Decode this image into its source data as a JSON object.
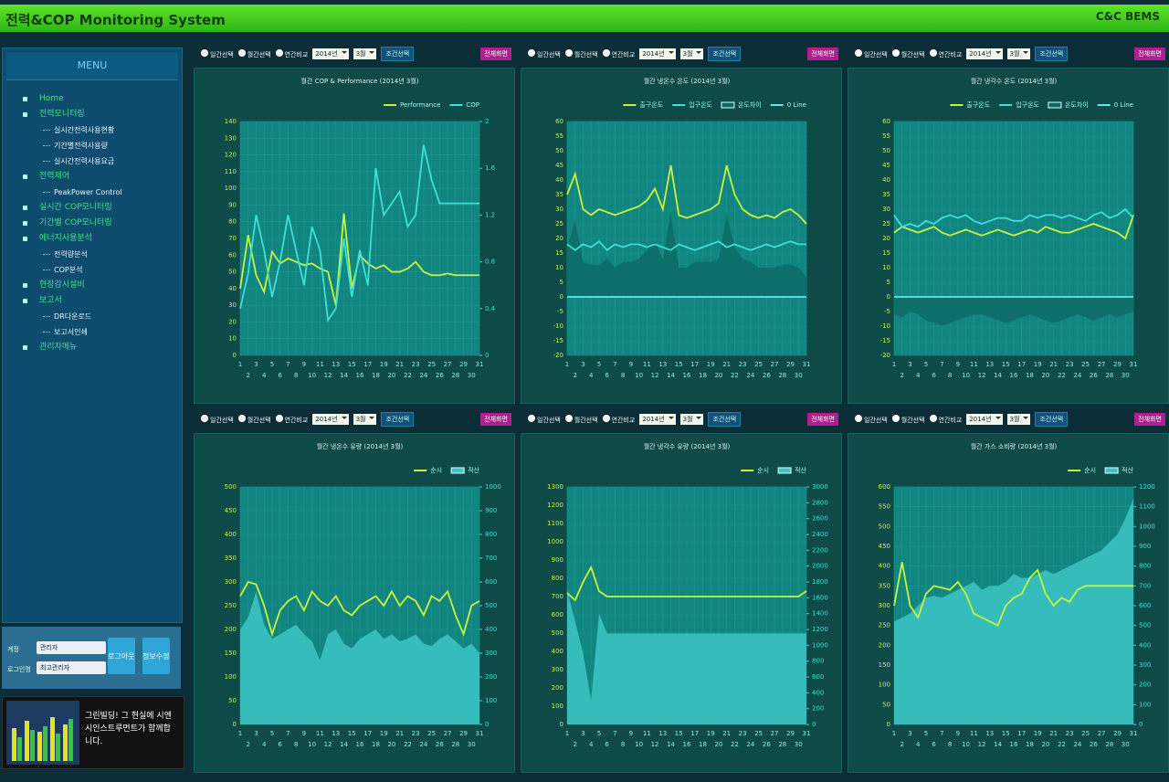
{
  "header": {
    "title": "전력&COP Monitoring System",
    "brand": "C&C BEMS"
  },
  "menu": {
    "title": "MENU",
    "items": [
      {
        "label": "Home"
      },
      {
        "label": "전력모니터링",
        "sub": [
          "실시간전력사용현황",
          "기간별전력사용량",
          "실시간전력사용요금"
        ]
      },
      {
        "label": "전력제어",
        "sub": [
          "PeakPower Control"
        ]
      },
      {
        "label": "실시간 COP모니터링"
      },
      {
        "label": "기간별 COP모니터링"
      },
      {
        "label": "에너지사용분석",
        "sub": [
          "전력량분석",
          "COP분석"
        ]
      },
      {
        "label": "현장감시설비"
      },
      {
        "label": "보고서",
        "sub": [
          "DR다운로드",
          "보고서인쇄"
        ]
      },
      {
        "label": "관리자메뉴"
      }
    ]
  },
  "login": {
    "fields": [
      {
        "label": "계정",
        "value": "관리자"
      },
      {
        "label": "로그인명",
        "value": "최고관리자"
      }
    ],
    "buttons": [
      "로그아웃",
      "정보수정"
    ]
  },
  "banner": {
    "text": "그린빌딩! 그 현실에 시엔시인스트루먼트가 함께합니다."
  },
  "controls": {
    "options": [
      "일간선택",
      "월간선택",
      "연간비교"
    ],
    "year": "2014년",
    "month": "3월",
    "search": "조건선택",
    "fullscreen": "전체화면"
  },
  "chart_data": [
    {
      "type": "line",
      "title": "월간 COP & Performance (2014년 3월)",
      "grid": true,
      "x": [
        1,
        2,
        3,
        4,
        5,
        6,
        7,
        8,
        9,
        10,
        11,
        12,
        13,
        14,
        15,
        16,
        17,
        18,
        19,
        20,
        21,
        22,
        23,
        24,
        25,
        26,
        27,
        28,
        29,
        30,
        31
      ],
      "xlim": [
        1,
        31
      ],
      "xticks": [
        1,
        2,
        3,
        4,
        5,
        6,
        7,
        8,
        9,
        10,
        11,
        12,
        13,
        14,
        15,
        16,
        17,
        18,
        19,
        20,
        21,
        22,
        23,
        24,
        25,
        26,
        27,
        28,
        29,
        30,
        31
      ],
      "ylim": [
        0,
        140
      ],
      "yticks": [
        0,
        10,
        20,
        30,
        40,
        50,
        60,
        70,
        80,
        90,
        100,
        110,
        120,
        130,
        140
      ],
      "y2lim": [
        0,
        2
      ],
      "y2ticks": [
        0,
        0.4,
        0.8,
        1.2,
        1.6,
        2
      ],
      "series": [
        {
          "name": "Performance",
          "color": "#c8f53c",
          "values": [
            40,
            72,
            48,
            38,
            62,
            55,
            58,
            56,
            54,
            55,
            52,
            50,
            30,
            85,
            40,
            60,
            55,
            52,
            54,
            50,
            50,
            52,
            56,
            50,
            48,
            48,
            49,
            48,
            48,
            48,
            48
          ]
        },
        {
          "name": "COP",
          "color": "#3de0d8",
          "axis": "y2",
          "values": [
            0.4,
            0.7,
            1.2,
            0.9,
            0.5,
            0.8,
            1.2,
            0.9,
            0.6,
            1.1,
            0.9,
            0.3,
            0.4,
            1.0,
            0.5,
            0.9,
            0.6,
            1.6,
            1.2,
            1.3,
            1.4,
            1.1,
            1.2,
            1.8,
            1.5,
            1.3,
            1.3,
            1.3,
            1.3,
            1.3,
            1.3
          ]
        }
      ]
    },
    {
      "type": "line",
      "title": "월간 냉온수 온도 (2014년 3월)",
      "grid": true,
      "x": [
        1,
        2,
        3,
        4,
        5,
        6,
        7,
        8,
        9,
        10,
        11,
        12,
        13,
        14,
        15,
        16,
        17,
        18,
        19,
        20,
        21,
        22,
        23,
        24,
        25,
        26,
        27,
        28,
        29,
        30,
        31
      ],
      "xlim": [
        1,
        31
      ],
      "xticks": [
        1,
        2,
        3,
        4,
        5,
        6,
        7,
        8,
        9,
        10,
        11,
        12,
        13,
        14,
        15,
        16,
        17,
        18,
        19,
        20,
        21,
        22,
        23,
        24,
        25,
        26,
        27,
        28,
        29,
        30,
        31
      ],
      "ylim": [
        -20,
        60
      ],
      "yticks": [
        -20,
        -15,
        -10,
        -5,
        0,
        5,
        10,
        15,
        20,
        25,
        30,
        35,
        40,
        45,
        50,
        55,
        60
      ],
      "series": [
        {
          "name": "출구온도",
          "color": "#c8f53c",
          "values": [
            35,
            42,
            30,
            28,
            30,
            29,
            28,
            29,
            30,
            31,
            33,
            37,
            30,
            45,
            28,
            27,
            28,
            29,
            30,
            32,
            45,
            35,
            30,
            28,
            27,
            28,
            27,
            29,
            30,
            28,
            25
          ]
        },
        {
          "name": "입구온도",
          "color": "#3de0d8",
          "values": [
            18,
            16,
            18,
            17,
            19,
            16,
            18,
            17,
            18,
            18,
            17,
            18,
            17,
            16,
            18,
            17,
            16,
            17,
            18,
            19,
            17,
            18,
            17,
            16,
            17,
            18,
            17,
            18,
            19,
            18,
            18
          ]
        },
        {
          "name": "온도차이",
          "color": "#0d6a66",
          "style": "area",
          "values": [
            17,
            26,
            12,
            11,
            11,
            13,
            10,
            12,
            12,
            13,
            16,
            19,
            13,
            29,
            10,
            10,
            12,
            12,
            12,
            13,
            28,
            17,
            13,
            12,
            10,
            10,
            10,
            11,
            11,
            10,
            7
          ]
        },
        {
          "name": "0 Line",
          "color": "#5ee8ea",
          "values": [
            0,
            0,
            0,
            0,
            0,
            0,
            0,
            0,
            0,
            0,
            0,
            0,
            0,
            0,
            0,
            0,
            0,
            0,
            0,
            0,
            0,
            0,
            0,
            0,
            0,
            0,
            0,
            0,
            0,
            0,
            0
          ]
        }
      ]
    },
    {
      "type": "line",
      "title": "월간 냉각수 온도 (2014년 3월)",
      "grid": true,
      "x": [
        1,
        2,
        3,
        4,
        5,
        6,
        7,
        8,
        9,
        10,
        11,
        12,
        13,
        14,
        15,
        16,
        17,
        18,
        19,
        20,
        21,
        22,
        23,
        24,
        25,
        26,
        27,
        28,
        29,
        30,
        31
      ],
      "xlim": [
        1,
        31
      ],
      "xticks": [
        1,
        2,
        3,
        4,
        5,
        6,
        7,
        8,
        9,
        10,
        11,
        12,
        13,
        14,
        15,
        16,
        17,
        18,
        19,
        20,
        21,
        22,
        23,
        24,
        25,
        26,
        27,
        28,
        29,
        30,
        31
      ],
      "ylim": [
        -20,
        60
      ],
      "yticks": [
        -20,
        -15,
        -10,
        -5,
        0,
        5,
        10,
        15,
        20,
        25,
        30,
        35,
        40,
        45,
        50,
        55,
        60
      ],
      "series": [
        {
          "name": "출구온도",
          "color": "#c8f53c",
          "values": [
            22,
            24,
            23,
            22,
            23,
            24,
            22,
            21,
            22,
            23,
            22,
            21,
            22,
            23,
            22,
            21,
            22,
            23,
            22,
            24,
            23,
            22,
            22,
            23,
            24,
            25,
            24,
            23,
            22,
            20,
            28
          ]
        },
        {
          "name": "입구온도",
          "color": "#3de0d8",
          "values": [
            28,
            24,
            25,
            24,
            26,
            25,
            27,
            28,
            27,
            28,
            26,
            25,
            26,
            27,
            27,
            26,
            26,
            28,
            27,
            28,
            28,
            27,
            28,
            27,
            26,
            28,
            29,
            27,
            28,
            30,
            27
          ]
        },
        {
          "name": "온도차이",
          "color": "#0d6a66",
          "style": "area",
          "values": [
            -6,
            -7,
            -5,
            -6,
            -8,
            -9,
            -10,
            -9,
            -8,
            -7,
            -6,
            -6,
            -7,
            -8,
            -9,
            -8,
            -7,
            -6,
            -7,
            -8,
            -9,
            -8,
            -7,
            -6,
            -7,
            -8,
            -7,
            -6,
            -7,
            -6,
            -5
          ]
        },
        {
          "name": "0 Line",
          "color": "#5ee8ea",
          "values": [
            0,
            0,
            0,
            0,
            0,
            0,
            0,
            0,
            0,
            0,
            0,
            0,
            0,
            0,
            0,
            0,
            0,
            0,
            0,
            0,
            0,
            0,
            0,
            0,
            0,
            0,
            0,
            0,
            0,
            0,
            0
          ]
        }
      ]
    },
    {
      "type": "line",
      "title": "월간 냉온수 유량 (2014년 3월)",
      "grid": true,
      "x": [
        1,
        2,
        3,
        4,
        5,
        6,
        7,
        8,
        9,
        10,
        11,
        12,
        13,
        14,
        15,
        16,
        17,
        18,
        19,
        20,
        21,
        22,
        23,
        24,
        25,
        26,
        27,
        28,
        29,
        30,
        31
      ],
      "xlim": [
        1,
        31
      ],
      "xticks": [
        1,
        2,
        3,
        4,
        5,
        6,
        7,
        8,
        9,
        10,
        11,
        12,
        13,
        14,
        15,
        16,
        17,
        18,
        19,
        20,
        21,
        22,
        23,
        24,
        25,
        26,
        27,
        28,
        29,
        30,
        31
      ],
      "ylim": [
        0,
        500
      ],
      "yticks": [
        0,
        50,
        100,
        150,
        200,
        250,
        300,
        350,
        400,
        450,
        500
      ],
      "y2lim": [
        0,
        1000
      ],
      "y2ticks": [
        0,
        100,
        200,
        300,
        400,
        500,
        600,
        700,
        800,
        900,
        1000
      ],
      "series": [
        {
          "name": "순시",
          "color": "#c8f53c",
          "values": [
            270,
            300,
            295,
            250,
            190,
            240,
            260,
            270,
            240,
            280,
            260,
            250,
            270,
            240,
            230,
            250,
            260,
            270,
            250,
            280,
            250,
            270,
            260,
            230,
            270,
            260,
            280,
            230,
            190,
            250,
            260
          ]
        },
        {
          "name": "적산",
          "color": "#3cc6c6",
          "style": "area",
          "axis": "y2",
          "values": [
            400,
            450,
            560,
            420,
            360,
            380,
            400,
            420,
            380,
            350,
            270,
            380,
            400,
            340,
            320,
            360,
            380,
            400,
            360,
            380,
            350,
            360,
            380,
            340,
            330,
            360,
            380,
            350,
            320,
            340,
            300
          ]
        }
      ]
    },
    {
      "type": "line",
      "title": "월간 냉각수 유량 (2014년 3월)",
      "grid": true,
      "x": [
        1,
        2,
        3,
        4,
        5,
        6,
        7,
        8,
        9,
        10,
        11,
        12,
        13,
        14,
        15,
        16,
        17,
        18,
        19,
        20,
        21,
        22,
        23,
        24,
        25,
        26,
        27,
        28,
        29,
        30,
        31
      ],
      "xlim": [
        1,
        31
      ],
      "xticks": [
        1,
        2,
        3,
        4,
        5,
        6,
        7,
        8,
        9,
        10,
        11,
        12,
        13,
        14,
        15,
        16,
        17,
        18,
        19,
        20,
        21,
        22,
        23,
        24,
        25,
        26,
        27,
        28,
        29,
        30,
        31
      ],
      "ylim": [
        0,
        1300
      ],
      "yticks": [
        0,
        100,
        200,
        300,
        400,
        500,
        600,
        700,
        800,
        900,
        1000,
        1100,
        1200,
        1300
      ],
      "y2lim": [
        0,
        3000
      ],
      "y2ticks": [
        0,
        200,
        400,
        600,
        800,
        1000,
        1200,
        1400,
        1600,
        1800,
        2000,
        2200,
        2400,
        2600,
        2800,
        3000
      ],
      "series": [
        {
          "name": "순시",
          "color": "#c8f53c",
          "values": [
            720,
            680,
            780,
            860,
            730,
            700,
            700,
            700,
            700,
            700,
            700,
            700,
            700,
            700,
            700,
            700,
            700,
            700,
            700,
            700,
            700,
            700,
            700,
            700,
            700,
            700,
            700,
            700,
            700,
            700,
            730
          ]
        },
        {
          "name": "적산",
          "color": "#3cc6c6",
          "style": "area",
          "axis": "y2",
          "values": [
            1700,
            1300,
            900,
            300,
            1400,
            1150,
            1150,
            1150,
            1150,
            1150,
            1150,
            1150,
            1150,
            1150,
            1150,
            1150,
            1150,
            1150,
            1150,
            1150,
            1150,
            1150,
            1150,
            1150,
            1150,
            1150,
            1150,
            1150,
            1150,
            1150,
            1150
          ]
        }
      ]
    },
    {
      "type": "line",
      "title": "월간 가스 소비량 (2014년 3월)",
      "grid": true,
      "x": [
        1,
        2,
        3,
        4,
        5,
        6,
        7,
        8,
        9,
        10,
        11,
        12,
        13,
        14,
        15,
        16,
        17,
        18,
        19,
        20,
        21,
        22,
        23,
        24,
        25,
        26,
        27,
        28,
        29,
        30,
        31
      ],
      "xlim": [
        1,
        31
      ],
      "xticks": [
        1,
        2,
        3,
        4,
        5,
        6,
        7,
        8,
        9,
        10,
        11,
        12,
        13,
        14,
        15,
        16,
        17,
        18,
        19,
        20,
        21,
        22,
        23,
        24,
        25,
        26,
        27,
        28,
        29,
        30,
        31
      ],
      "ylim": [
        0,
        600
      ],
      "yticks": [
        0,
        50,
        100,
        150,
        200,
        250,
        300,
        350,
        400,
        450,
        500,
        550,
        600
      ],
      "y2lim": [
        0,
        1200
      ],
      "y2ticks": [
        0,
        100,
        200,
        300,
        400,
        500,
        600,
        700,
        800,
        900,
        1000,
        1100,
        1200
      ],
      "series": [
        {
          "name": "순시",
          "color": "#c8f53c",
          "values": [
            300,
            410,
            300,
            270,
            330,
            350,
            345,
            340,
            360,
            330,
            280,
            270,
            260,
            250,
            300,
            320,
            330,
            370,
            390,
            330,
            300,
            320,
            310,
            340,
            350,
            350,
            350,
            350,
            350,
            350,
            350
          ]
        },
        {
          "name": "적산",
          "color": "#3cc6c6",
          "style": "area",
          "axis": "y2",
          "values": [
            520,
            540,
            560,
            600,
            640,
            650,
            640,
            660,
            680,
            700,
            720,
            680,
            700,
            700,
            720,
            760,
            740,
            740,
            760,
            780,
            760,
            780,
            800,
            820,
            840,
            860,
            880,
            920,
            960,
            1040,
            1140
          ]
        }
      ]
    }
  ]
}
